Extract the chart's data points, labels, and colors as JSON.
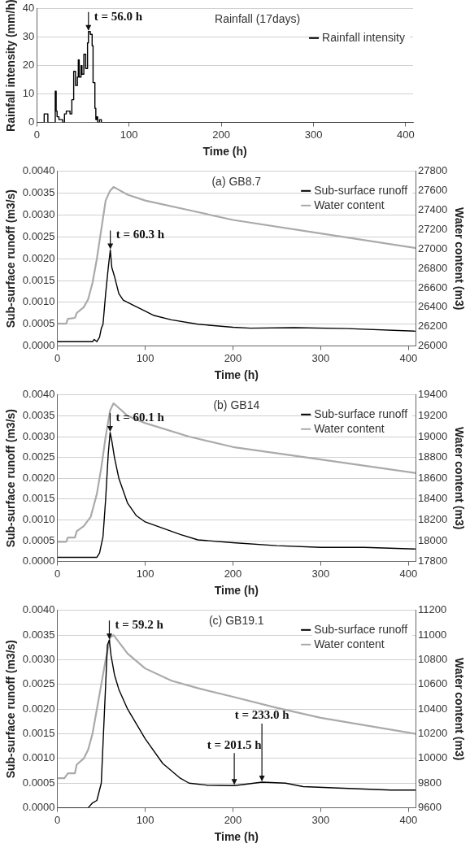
{
  "chart_data": [
    {
      "type": "step",
      "title": "Rainfall (17days)",
      "xlabel": "Time (h)",
      "ylabel": "Rainfall intensity (mm/h)",
      "xlim": [
        0,
        408
      ],
      "xticks": [
        0,
        100,
        200,
        300,
        400
      ],
      "ylim": [
        0,
        40
      ],
      "yticks": [
        0,
        10,
        20,
        30,
        40
      ],
      "grid": "y",
      "legend": "top right",
      "marker": "none",
      "annotations": [
        {
          "text": "t = 56.0 h",
          "x": 56,
          "y": 32
        }
      ],
      "series": [
        {
          "name": "Rainfall intensity",
          "color": "#000000",
          "x": [
            0,
            8,
            10,
            12,
            20,
            21,
            22,
            24,
            28,
            30,
            32,
            36,
            38,
            40,
            42,
            44,
            45,
            46,
            48,
            49,
            51,
            53,
            55,
            56,
            58,
            60,
            61,
            63,
            64,
            65,
            66,
            68,
            70,
            408
          ],
          "values": [
            0,
            3,
            3,
            0,
            11,
            4,
            2,
            1,
            0,
            3,
            4,
            3,
            8,
            18,
            13,
            16,
            22,
            16,
            20,
            17,
            24,
            19,
            28,
            32,
            31,
            27,
            14,
            5,
            1,
            2,
            0,
            1,
            0,
            0
          ]
        }
      ]
    },
    {
      "type": "line",
      "title": "(a) GB8.7",
      "xlabel": "Time (h)",
      "ylabel": "Sub-surface runoff (m3/s)",
      "y2label": "Water content (m3)",
      "xlim": [
        0,
        408
      ],
      "xticks": [
        0,
        100,
        200,
        300,
        400
      ],
      "ylim": [
        0,
        0.004
      ],
      "yticks": [
        {
          "value": 0,
          "label": "0.0000"
        },
        {
          "value": 0.0005,
          "label": "0.0005"
        },
        {
          "value": 0.001,
          "label": "0.0010"
        },
        {
          "value": 0.0015,
          "label": "0.0015"
        },
        {
          "value": 0.002,
          "label": "0.0020"
        },
        {
          "value": 0.0025,
          "label": "0.0025"
        },
        {
          "value": 0.003,
          "label": "0.0030"
        },
        {
          "value": 0.0035,
          "label": "0.0035"
        },
        {
          "value": 0.004,
          "label": "0.0040"
        }
      ],
      "y2lim": [
        26000,
        27800
      ],
      "y2ticks": [
        26000,
        26200,
        26400,
        26600,
        26800,
        27000,
        27200,
        27400,
        27600,
        27800
      ],
      "grid": "y",
      "legend": "top right",
      "marker": "none",
      "annotations": [
        {
          "text": "t = 60.3 h",
          "x": 60.3,
          "y": 0.0022
        }
      ],
      "series": [
        {
          "name": "Sub-surface runoff",
          "color": "#000000",
          "x": [
            0,
            20,
            40,
            42,
            45,
            48,
            50,
            52,
            55,
            58,
            60.3,
            62,
            65,
            70,
            75,
            85,
            100,
            110,
            130,
            160,
            200,
            220,
            270,
            330,
            408
          ],
          "values": [
            0.0001,
            0.0001,
            0.0001,
            0.00015,
            0.0001,
            0.0002,
            0.0004,
            0.0005,
            0.0012,
            0.0018,
            0.0022,
            0.0018,
            0.0016,
            0.0012,
            0.00105,
            0.00095,
            0.0008,
            0.0007,
            0.0006,
            0.0005,
            0.00043,
            0.00041,
            0.00042,
            0.0004,
            0.00034
          ]
        },
        {
          "name": "Water content",
          "color": "#aaaaaa",
          "axis": "y2",
          "x": [
            0,
            10,
            12,
            20,
            22,
            30,
            35,
            40,
            45,
            50,
            55,
            60,
            64,
            80,
            100,
            150,
            200,
            300,
            408
          ],
          "values": [
            26230,
            26230,
            26280,
            26290,
            26340,
            26400,
            26480,
            26650,
            26900,
            27200,
            27500,
            27600,
            27640,
            27560,
            27500,
            27400,
            27300,
            27160,
            27010
          ]
        }
      ]
    },
    {
      "type": "line",
      "title": "(b) GB14",
      "xlabel": "Time (h)",
      "ylabel": "Sub-surface runoff (m3/s)",
      "y2label": "Water content (m3)",
      "xlim": [
        0,
        408
      ],
      "xticks": [
        0,
        100,
        200,
        300,
        400
      ],
      "ylim": [
        0,
        0.004
      ],
      "yticks": [
        {
          "value": 0,
          "label": "0.0000"
        },
        {
          "value": 0.0005,
          "label": "0.0005"
        },
        {
          "value": 0.001,
          "label": "0.0010"
        },
        {
          "value": 0.0015,
          "label": "0.0015"
        },
        {
          "value": 0.002,
          "label": "0.0020"
        },
        {
          "value": 0.0025,
          "label": "0.0025"
        },
        {
          "value": 0.003,
          "label": "0.0030"
        },
        {
          "value": 0.0035,
          "label": "0.0035"
        },
        {
          "value": 0.004,
          "label": "0.0040"
        }
      ],
      "y2lim": [
        17800,
        19400
      ],
      "y2ticks": [
        17800,
        18000,
        18200,
        18400,
        18600,
        18800,
        19000,
        19200,
        19400
      ],
      "grid": "y",
      "legend": "top right",
      "marker": "none",
      "annotations": [
        {
          "text": "t = 60.1 h",
          "x": 60.1,
          "y": 0.0031
        }
      ],
      "series": [
        {
          "name": "Sub-surface runoff",
          "color": "#000000",
          "x": [
            0,
            20,
            40,
            45,
            48,
            52,
            55,
            58,
            60.1,
            62,
            65,
            70,
            80,
            90,
            100,
            120,
            140,
            160,
            200,
            250,
            300,
            350,
            408
          ],
          "values": [
            0.0001,
            0.0001,
            0.0001,
            0.0001,
            0.0002,
            0.0006,
            0.0015,
            0.0026,
            0.0031,
            0.0029,
            0.0025,
            0.002,
            0.0014,
            0.0011,
            0.00095,
            0.0008,
            0.00065,
            0.00052,
            0.00045,
            0.00038,
            0.00034,
            0.00034,
            0.0003
          ]
        },
        {
          "name": "Water content",
          "color": "#aaaaaa",
          "axis": "y2",
          "x": [
            0,
            10,
            12,
            20,
            22,
            30,
            38,
            45,
            50,
            55,
            60,
            64,
            80,
            100,
            150,
            200,
            300,
            408
          ],
          "values": [
            17990,
            17990,
            18030,
            18030,
            18090,
            18140,
            18230,
            18450,
            18700,
            19000,
            19250,
            19320,
            19200,
            19130,
            19000,
            18900,
            18780,
            18650
          ]
        }
      ]
    },
    {
      "type": "line",
      "title": "(c) GB19.1",
      "xlabel": "Time (h)",
      "ylabel": "Sub-surface runoff (m3/s)",
      "y2label": "Water content (m3)",
      "xlim": [
        0,
        408
      ],
      "xticks": [
        0,
        100,
        200,
        300,
        400
      ],
      "ylim": [
        0,
        0.004
      ],
      "yticks": [
        {
          "value": 0,
          "label": "0.0000"
        },
        {
          "value": 0.0005,
          "label": "0.0005"
        },
        {
          "value": 0.001,
          "label": "0.0010"
        },
        {
          "value": 0.0015,
          "label": "0.0015"
        },
        {
          "value": 0.002,
          "label": "0.0020"
        },
        {
          "value": 0.0025,
          "label": "0.0025"
        },
        {
          "value": 0.003,
          "label": "0.0030"
        },
        {
          "value": 0.0035,
          "label": "0.0035"
        },
        {
          "value": 0.004,
          "label": "0.0040"
        }
      ],
      "y2lim": [
        9600,
        11200
      ],
      "y2ticks": [
        9600,
        9800,
        10000,
        10200,
        10400,
        10600,
        10800,
        11000,
        11200
      ],
      "grid": "y",
      "legend": "top right",
      "marker": "none",
      "annotations": [
        {
          "text": "t = 59.2 h",
          "x": 59.2,
          "y": 0.0034
        },
        {
          "text": "t = 201.5 h",
          "x": 201.5,
          "y": 0.00045
        },
        {
          "text": "t = 233.0 h",
          "x": 233,
          "y": 0.00052
        }
      ],
      "series": [
        {
          "name": "Sub-surface runoff",
          "color": "#000000",
          "x": [
            0,
            35,
            40,
            45,
            50,
            52,
            55,
            57,
            59.2,
            61,
            65,
            70,
            80,
            100,
            120,
            140,
            150,
            170,
            201.5,
            215,
            233,
            260,
            280,
            320,
            380,
            408
          ],
          "values": [
            0,
            0,
            0.0001,
            0.00015,
            0.0005,
            0.0013,
            0.0025,
            0.0033,
            0.0034,
            0.0031,
            0.0027,
            0.0024,
            0.002,
            0.0014,
            0.0009,
            0.0006,
            0.0005,
            0.00046,
            0.00045,
            0.00048,
            0.00052,
            0.0005,
            0.00043,
            0.0004,
            0.00036,
            0.00036
          ]
        },
        {
          "name": "Water content",
          "color": "#aaaaaa",
          "axis": "y2",
          "x": [
            0,
            8,
            12,
            20,
            22,
            30,
            35,
            40,
            45,
            50,
            55,
            60,
            64,
            80,
            100,
            130,
            160,
            200,
            250,
            300,
            408
          ],
          "values": [
            9840,
            9840,
            9880,
            9880,
            9950,
            10000,
            10070,
            10200,
            10400,
            10600,
            10800,
            10980,
            11000,
            10850,
            10730,
            10630,
            10570,
            10500,
            10410,
            10330,
            10200
          ]
        }
      ]
    }
  ]
}
